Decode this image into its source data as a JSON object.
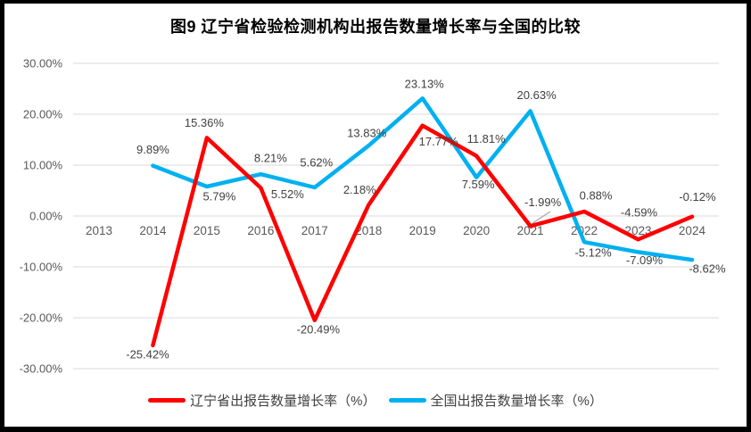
{
  "chart_data": {
    "type": "line",
    "title": "图9  辽宁省检验检测机构出报告数量增长率与全国的比较",
    "categories": [
      "2013",
      "2014",
      "2015",
      "2016",
      "2017",
      "2018",
      "2019",
      "2020",
      "2021",
      "2022",
      "2023",
      "2024"
    ],
    "y_axis": {
      "min": -30,
      "max": 30,
      "tick_step": 10,
      "tick_labels": [
        "30.00%",
        "20.00%",
        "10.00%",
        "0.00%",
        "-10.00%",
        "-20.00%",
        "-30.00%"
      ],
      "tick_values": [
        30,
        20,
        10,
        0,
        -10,
        -20,
        -30
      ]
    },
    "grid": "horizontal",
    "legend_position": "bottom",
    "colors": {
      "gridline": "#D9D9D9",
      "axis_text": "#595959",
      "data_label_text": "#404040",
      "leader_line": "#A6A6A6"
    },
    "series": [
      {
        "name": "全国出报告数量增长率（%）",
        "color": "#00B0F0",
        "years": [
          "2014",
          "2015",
          "2016",
          "2017",
          "2018",
          "2019",
          "2020",
          "2021",
          "2022",
          "2023",
          "2024"
        ],
        "values": [
          9.89,
          5.79,
          8.21,
          5.62,
          13.83,
          23.13,
          7.59,
          20.63,
          -5.12,
          -7.09,
          -8.62
        ],
        "data_labels": [
          "9.89%",
          "5.79%",
          "8.21%",
          "5.62%",
          "13.83%",
          "23.13%",
          "7.59%",
          "20.63%",
          "-5.12%",
          "-7.09%",
          "-8.62%"
        ]
      },
      {
        "name": "辽宁省出报告数量增长率（%）",
        "color": "#FF0000",
        "years": [
          "2014",
          "2015",
          "2016",
          "2017",
          "2018",
          "2019",
          "2020",
          "2021",
          "2022",
          "2023",
          "2024"
        ],
        "values": [
          -25.42,
          15.36,
          5.52,
          -20.49,
          2.18,
          17.77,
          11.81,
          -1.99,
          0.88,
          -4.59,
          -0.12
        ],
        "data_labels": [
          "-25.42%",
          "15.36%",
          "5.52%",
          "-20.49%",
          "2.18%",
          "17.77%",
          "11.81%",
          "-1.99%",
          "0.88%",
          "-4.59%",
          "-0.12%"
        ]
      }
    ],
    "legend": [
      {
        "label": "辽宁省出报告数量增长率（%）",
        "color": "#FF0000"
      },
      {
        "label": "全国出报告数量增长率（%）",
        "color": "#00B0F0"
      }
    ]
  }
}
